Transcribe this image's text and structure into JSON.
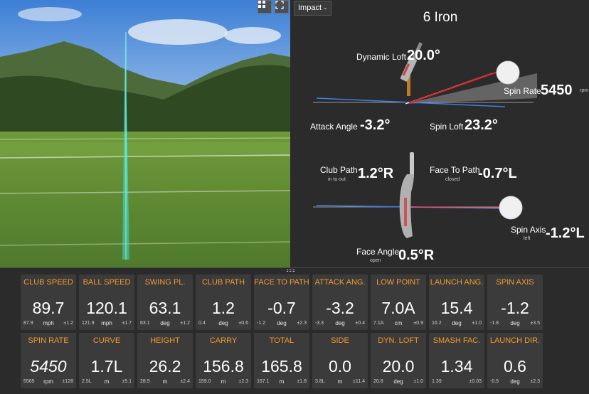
{
  "view": {
    "layout_icon": "grid-layout-icon",
    "fullscreen_icon": "fullscreen-icon"
  },
  "impact": {
    "dropdown_label": "Impact",
    "club_name": "6 Iron",
    "dynamic_loft": {
      "label": "Dynamic Loft",
      "value": "20.0°"
    },
    "spin_rate": {
      "label": "Spin Rate",
      "value": "5450",
      "unit": "rpm"
    },
    "attack_angle": {
      "label": "Attack Angle",
      "value": "-3.2°"
    },
    "spin_loft": {
      "label": "Spin Loft",
      "value": "23.2°"
    },
    "club_path": {
      "label": "Club Path",
      "sub": "in to out",
      "value": "1.2°R"
    },
    "face_to_path": {
      "label": "Face To Path",
      "sub": "closed",
      "value": "-0.7°L"
    },
    "spin_axis": {
      "label": "Spin Axis",
      "sub": "left",
      "value": "-1.2°L"
    },
    "face_angle": {
      "label": "Face Angle",
      "sub": "open",
      "value": "0.5°R"
    }
  },
  "colors": {
    "accent": "#f59a2c",
    "tile_bg": "#3b3b3b",
    "panel_bg": "#2b2b2b",
    "trace": "#3fe0d0"
  },
  "tiles": [
    {
      "name": "CLUB SPEED",
      "value": "89.7",
      "left": "87.9",
      "unit": "mph",
      "right": "±1.2"
    },
    {
      "name": "BALL SPEED",
      "value": "120.1",
      "left": "121.9",
      "unit": "mph",
      "right": "±1.7"
    },
    {
      "name": "SWING PL.",
      "value": "63.1",
      "left": "63.1",
      "unit": "deg",
      "right": "±1.2"
    },
    {
      "name": "CLUB PATH",
      "value": "1.2",
      "left": "0.4",
      "unit": "deg",
      "right": "±0.6"
    },
    {
      "name": "FACE TO PATH",
      "value": "-0.7",
      "left": "-1.2",
      "unit": "deg",
      "right": "±2.3"
    },
    {
      "name": "ATTACK ANG.",
      "value": "-3.2",
      "left": "-3.3",
      "unit": "deg",
      "right": "±0.4"
    },
    {
      "name": "LOW POINT",
      "value": "7.0A",
      "left": "7.1A",
      "unit": "cm",
      "right": "±0.9"
    },
    {
      "name": "LAUNCH ANG.",
      "value": "15.4",
      "left": "16.2",
      "unit": "deg",
      "right": "±1.0"
    },
    {
      "name": "SPIN AXIS",
      "value": "-1.2",
      "left": "-1.8",
      "unit": "deg",
      "right": "±3.5"
    },
    {
      "name": "SPIN RATE",
      "value": "5450",
      "left": "5565",
      "unit": "rpm",
      "right": "±128",
      "italic": true
    },
    {
      "name": "CURVE",
      "value": "1.7L",
      "left": "2.5L",
      "unit": "m",
      "right": "±5.1"
    },
    {
      "name": "HEIGHT",
      "value": "26.2",
      "left": "28.5",
      "unit": "m",
      "right": "±2.4"
    },
    {
      "name": "CARRY",
      "value": "156.8",
      "left": "159.0",
      "unit": "m",
      "right": "±2.3"
    },
    {
      "name": "TOTAL",
      "value": "165.8",
      "left": "167.1",
      "unit": "m",
      "right": "±1.8"
    },
    {
      "name": "SIDE",
      "value": "0.0",
      "left": "3.8L",
      "unit": "m",
      "right": "±11.4"
    },
    {
      "name": "DYN. LOFT",
      "value": "20.0",
      "left": "20.8",
      "unit": "deg",
      "right": "±1.0"
    },
    {
      "name": "SMASH FAC.",
      "value": "1.34",
      "left": "1.39",
      "unit": "",
      "right": "±0.03"
    },
    {
      "name": "LAUNCH DIR.",
      "value": "0.6",
      "left": "-0.5",
      "unit": "deg",
      "right": "±2.3"
    }
  ]
}
